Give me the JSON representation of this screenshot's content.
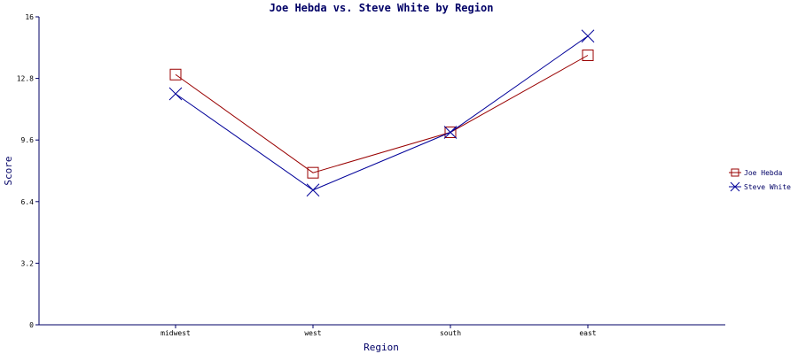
{
  "chart_data": {
    "type": "line",
    "title": "Joe Hebda vs. Steve White by Region",
    "xlabel": "Region",
    "ylabel": "Score",
    "categories": [
      "midwest",
      "west",
      "south",
      "east"
    ],
    "ylim": [
      0,
      16
    ],
    "yticks": [
      0,
      3.2,
      6.4,
      9.6,
      12.8,
      16
    ],
    "ytick_labels": [
      "0",
      "3.2",
      "6.4",
      "9.6",
      "12.8",
      "16"
    ],
    "grid": false,
    "legend_position": "right",
    "series": [
      {
        "name": "Joe Hebda",
        "values": [
          13.0,
          7.9,
          10.0,
          14.0
        ],
        "color": "#990000",
        "marker": "square"
      },
      {
        "name": "Steve White",
        "values": [
          12.0,
          7.0,
          10.0,
          15.0
        ],
        "color": "#000099",
        "marker": "x"
      }
    ],
    "axis_color": "#000066"
  }
}
